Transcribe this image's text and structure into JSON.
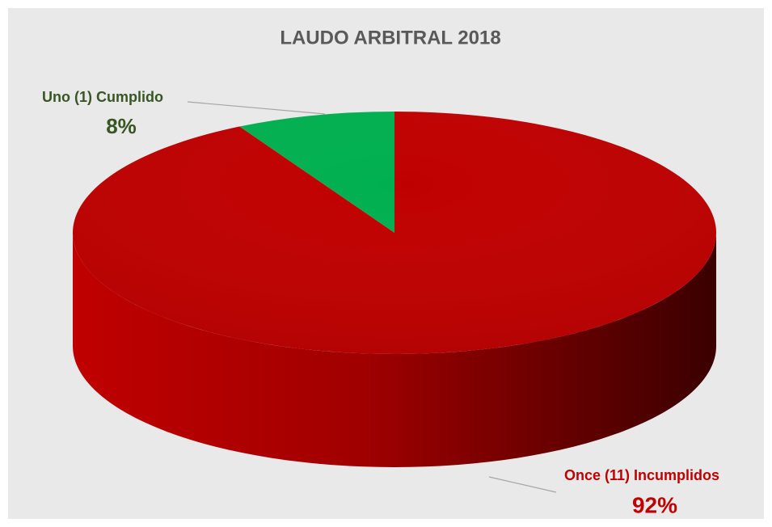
{
  "chart_data": {
    "type": "pie",
    "title": "LAUDO ARBITRAL 2018",
    "categories": [
      "Uno (1) Cumplido",
      "Once (11) Incumplidos"
    ],
    "values": [
      8,
      92
    ],
    "value_labels": [
      "8%",
      "92%"
    ],
    "colors": [
      "#00b050",
      "#c00000"
    ]
  }
}
